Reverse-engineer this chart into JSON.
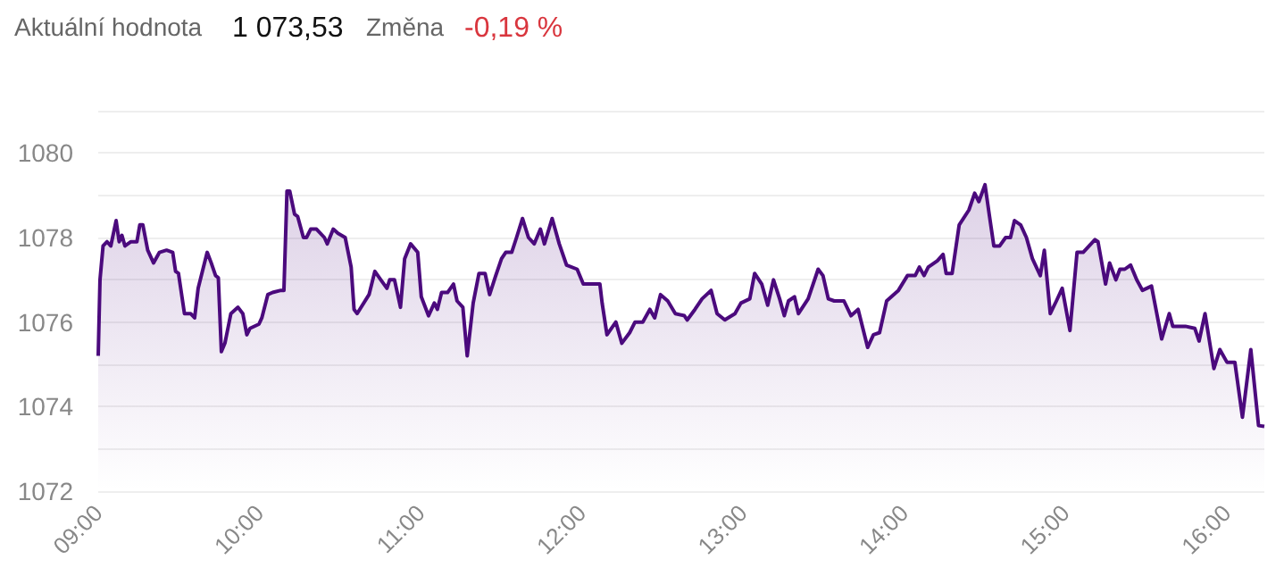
{
  "chart_data": {
    "type": "area",
    "annotations": [
      "Aktuální hodnota",
      "1 073,53",
      "Změna",
      "-0,19 %"
    ],
    "x": [
      9.0,
      9.011,
      9.03,
      9.055,
      9.078,
      9.111,
      9.13,
      9.147,
      9.166,
      9.203,
      9.24,
      9.258,
      9.277,
      9.307,
      9.343,
      9.38,
      9.424,
      9.462,
      9.48,
      9.498,
      9.535,
      9.573,
      9.598,
      9.62,
      9.676,
      9.701,
      9.728,
      9.745,
      9.764,
      9.786,
      9.823,
      9.867,
      9.897,
      9.922,
      9.941,
      9.997,
      10.015,
      10.052,
      10.082,
      10.133,
      10.152,
      10.171,
      10.188,
      10.218,
      10.237,
      10.273,
      10.292,
      10.318,
      10.354,
      10.403,
      10.421,
      10.458,
      10.487,
      10.532,
      10.569,
      10.587,
      10.606,
      10.68,
      10.716,
      10.753,
      10.791,
      10.808,
      10.838,
      10.875,
      10.901,
      10.938,
      10.982,
      11.004,
      11.049,
      11.085,
      11.104,
      11.13,
      11.167,
      11.204,
      11.226,
      11.262,
      11.289,
      11.326,
      11.362,
      11.4,
      11.428,
      11.466,
      11.502,
      11.528,
      11.565,
      11.595,
      11.632,
      11.669,
      11.705,
      11.743,
      11.768,
      11.816,
      11.86,
      11.905,
      11.971,
      12.009,
      12.112,
      12.126,
      12.156,
      12.211,
      12.248,
      12.297,
      12.33,
      12.378,
      12.422,
      12.452,
      12.488,
      12.533,
      12.58,
      12.636,
      12.654,
      12.702,
      12.746,
      12.802,
      12.839,
      12.887,
      12.95,
      12.987,
      13.042,
      13.072,
      13.116,
      13.153,
      13.189,
      13.227,
      13.256,
      13.282,
      13.319,
      13.344,
      13.404,
      13.466,
      13.496,
      13.529,
      13.566,
      13.626,
      13.67,
      13.714,
      13.773,
      13.809,
      13.847,
      13.891,
      13.964,
      14.02,
      14.068,
      14.094,
      14.123,
      14.149,
      14.205,
      14.241,
      14.26,
      14.297,
      14.341,
      14.401,
      14.437,
      14.463,
      14.501,
      14.529,
      14.556,
      14.592,
      14.629,
      14.659,
      14.684,
      14.722,
      14.758,
      14.795,
      14.844,
      14.869,
      14.906,
      14.944,
      14.98,
      15.028,
      15.072,
      15.11,
      15.183,
      15.202,
      15.249,
      15.274,
      15.313,
      15.338,
      15.368,
      15.404,
      15.442,
      15.478,
      15.534,
      15.597,
      15.644,
      15.666,
      15.744,
      15.803,
      15.829,
      15.866,
      15.921,
      15.958,
      16.002,
      16.051,
      16.098,
      16.15,
      16.198,
      16.234
    ],
    "series": [
      {
        "color": "#4b0a7d",
        "values": [
          1075.2,
          1077.0,
          1077.8,
          1077.9,
          1077.8,
          1078.4,
          1077.9,
          1078.05,
          1077.8,
          1077.9,
          1077.9,
          1078.3,
          1078.3,
          1077.7,
          1077.4,
          1077.65,
          1077.7,
          1077.65,
          1077.2,
          1077.15,
          1076.2,
          1076.2,
          1076.1,
          1076.8,
          1077.65,
          1077.4,
          1077.1,
          1077.05,
          1075.3,
          1075.5,
          1076.2,
          1076.35,
          1076.2,
          1075.7,
          1075.85,
          1075.95,
          1076.1,
          1076.65,
          1076.7,
          1076.75,
          1076.75,
          1079.1,
          1079.1,
          1078.55,
          1078.5,
          1078.0,
          1078.0,
          1078.2,
          1078.2,
          1078.0,
          1077.85,
          1078.2,
          1078.1,
          1078.0,
          1077.3,
          1076.3,
          1076.2,
          1076.65,
          1077.2,
          1077.0,
          1076.8,
          1077.0,
          1077.0,
          1076.35,
          1077.5,
          1077.85,
          1077.65,
          1076.6,
          1076.15,
          1076.45,
          1076.3,
          1076.7,
          1076.7,
          1076.9,
          1076.5,
          1076.35,
          1075.2,
          1076.45,
          1077.15,
          1077.15,
          1076.65,
          1077.1,
          1077.5,
          1077.65,
          1077.65,
          1078.0,
          1078.45,
          1078.0,
          1077.85,
          1078.2,
          1077.85,
          1078.45,
          1077.85,
          1077.35,
          1077.25,
          1076.9,
          1076.9,
          1076.45,
          1075.7,
          1076.0,
          1075.5,
          1075.75,
          1076.0,
          1076.0,
          1076.3,
          1076.1,
          1076.65,
          1076.5,
          1076.2,
          1076.15,
          1076.05,
          1076.3,
          1076.55,
          1076.75,
          1076.2,
          1076.05,
          1076.2,
          1076.45,
          1076.55,
          1077.15,
          1076.9,
          1076.4,
          1077.0,
          1076.55,
          1076.15,
          1076.5,
          1076.6,
          1076.2,
          1076.55,
          1077.25,
          1077.1,
          1076.55,
          1076.5,
          1076.5,
          1076.15,
          1076.3,
          1075.4,
          1075.7,
          1075.75,
          1076.5,
          1076.75,
          1077.1,
          1077.1,
          1077.3,
          1077.1,
          1077.3,
          1077.45,
          1077.6,
          1077.15,
          1077.15,
          1078.3,
          1078.65,
          1079.05,
          1078.85,
          1079.25,
          1078.5,
          1077.8,
          1077.8,
          1078.0,
          1078.0,
          1078.4,
          1078.3,
          1078.0,
          1077.5,
          1077.1,
          1077.7,
          1076.2,
          1076.5,
          1076.8,
          1075.8,
          1077.65,
          1077.65,
          1077.95,
          1077.9,
          1076.9,
          1077.4,
          1077.0,
          1077.25,
          1077.25,
          1077.35,
          1077.0,
          1076.75,
          1076.85,
          1075.6,
          1076.2,
          1075.9,
          1075.9,
          1075.85,
          1075.55,
          1076.2,
          1074.9,
          1075.35,
          1075.05,
          1075.05,
          1073.75,
          1075.35,
          1073.55,
          1073.53
        ]
      }
    ],
    "xlim": [
      9,
      16.234
    ],
    "xticks": [
      {
        "value": 9,
        "label": "09:00"
      },
      {
        "value": 10,
        "label": "10:00"
      },
      {
        "value": 11,
        "label": "11:00"
      },
      {
        "value": 12,
        "label": "12:00"
      },
      {
        "value": 13,
        "label": "13:00"
      },
      {
        "value": 14,
        "label": "14:00"
      },
      {
        "value": 15,
        "label": "15:00"
      },
      {
        "value": 16,
        "label": "16:00"
      }
    ],
    "ylim": [
      1072,
      1081
    ],
    "yticks": [
      1072,
      {
        "value": 1073,
        "label": null
      },
      1074,
      {
        "value": 1075,
        "label": null
      },
      1076,
      {
        "value": 1077,
        "label": null
      },
      1078,
      {
        "value": 1079,
        "label": null
      },
      1080,
      {
        "value": 1081,
        "label": null
      }
    ],
    "grid": "y",
    "marker": "none",
    "line_style": "solid"
  }
}
